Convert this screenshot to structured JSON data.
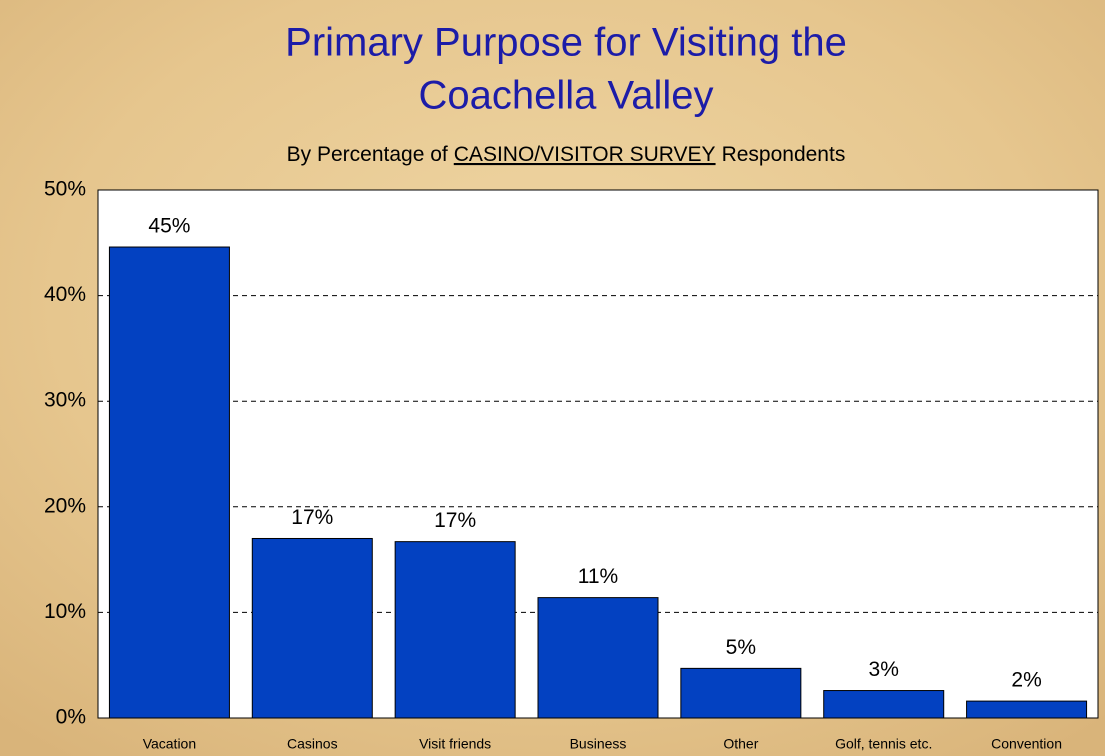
{
  "chart_data": {
    "type": "bar",
    "title": [
      "Primary Purpose for Visiting the",
      "Coachella Valley"
    ],
    "subtitle": [
      "By Percentage of",
      "CASINO/VISITOR SURVEY",
      "Respondents"
    ],
    "categories": [
      "Vacation",
      "Casinos",
      "Visit friends",
      "Business",
      "Other",
      "Golf, tennis etc.",
      "Convention"
    ],
    "values": [
      44.6,
      17,
      16.7,
      11.4,
      4.7,
      2.6,
      1.6
    ],
    "value_labels": [
      "45%",
      "17%",
      "17%",
      "11%",
      "5%",
      "3%",
      "2%"
    ],
    "color": "#0341c1",
    "ylim": [
      0,
      50
    ],
    "yticks": [
      {
        "value": 0,
        "label": "0%"
      },
      {
        "value": 10,
        "label": "10%"
      },
      {
        "value": 20,
        "label": "20%"
      },
      {
        "value": 30,
        "label": "30%"
      },
      {
        "value": 40,
        "label": "40%"
      },
      {
        "value": 50,
        "label": "50%"
      }
    ],
    "grid": true
  }
}
